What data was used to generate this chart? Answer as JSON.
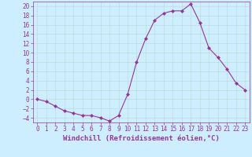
{
  "x": [
    0,
    1,
    2,
    3,
    4,
    5,
    6,
    7,
    8,
    9,
    10,
    11,
    12,
    13,
    14,
    15,
    16,
    17,
    18,
    19,
    20,
    21,
    22,
    23
  ],
  "y": [
    0,
    -0.5,
    -1.5,
    -2.5,
    -3,
    -3.5,
    -3.5,
    -4,
    -4.7,
    -3.5,
    1,
    8,
    13,
    17,
    18.5,
    19,
    19,
    20.5,
    16.5,
    11,
    9,
    6.5,
    3.5,
    2
  ],
  "line_color": "#993399",
  "marker": "D",
  "marker_size": 2,
  "xlabel": "Windchill (Refroidissement éolien,°C)",
  "xlabel_fontsize": 6.5,
  "background_color": "#cceeff",
  "grid_color": "#bbdddd",
  "ylim": [
    -5,
    21
  ],
  "xlim": [
    -0.5,
    23.5
  ],
  "yticks": [
    -4,
    -2,
    0,
    2,
    4,
    6,
    8,
    10,
    12,
    14,
    16,
    18,
    20
  ],
  "xticks": [
    0,
    1,
    2,
    3,
    4,
    5,
    6,
    7,
    8,
    9,
    10,
    11,
    12,
    13,
    14,
    15,
    16,
    17,
    18,
    19,
    20,
    21,
    22,
    23
  ],
  "tick_fontsize": 5.5,
  "tick_color": "#993399",
  "axis_color": "#993399",
  "linewidth": 0.8
}
